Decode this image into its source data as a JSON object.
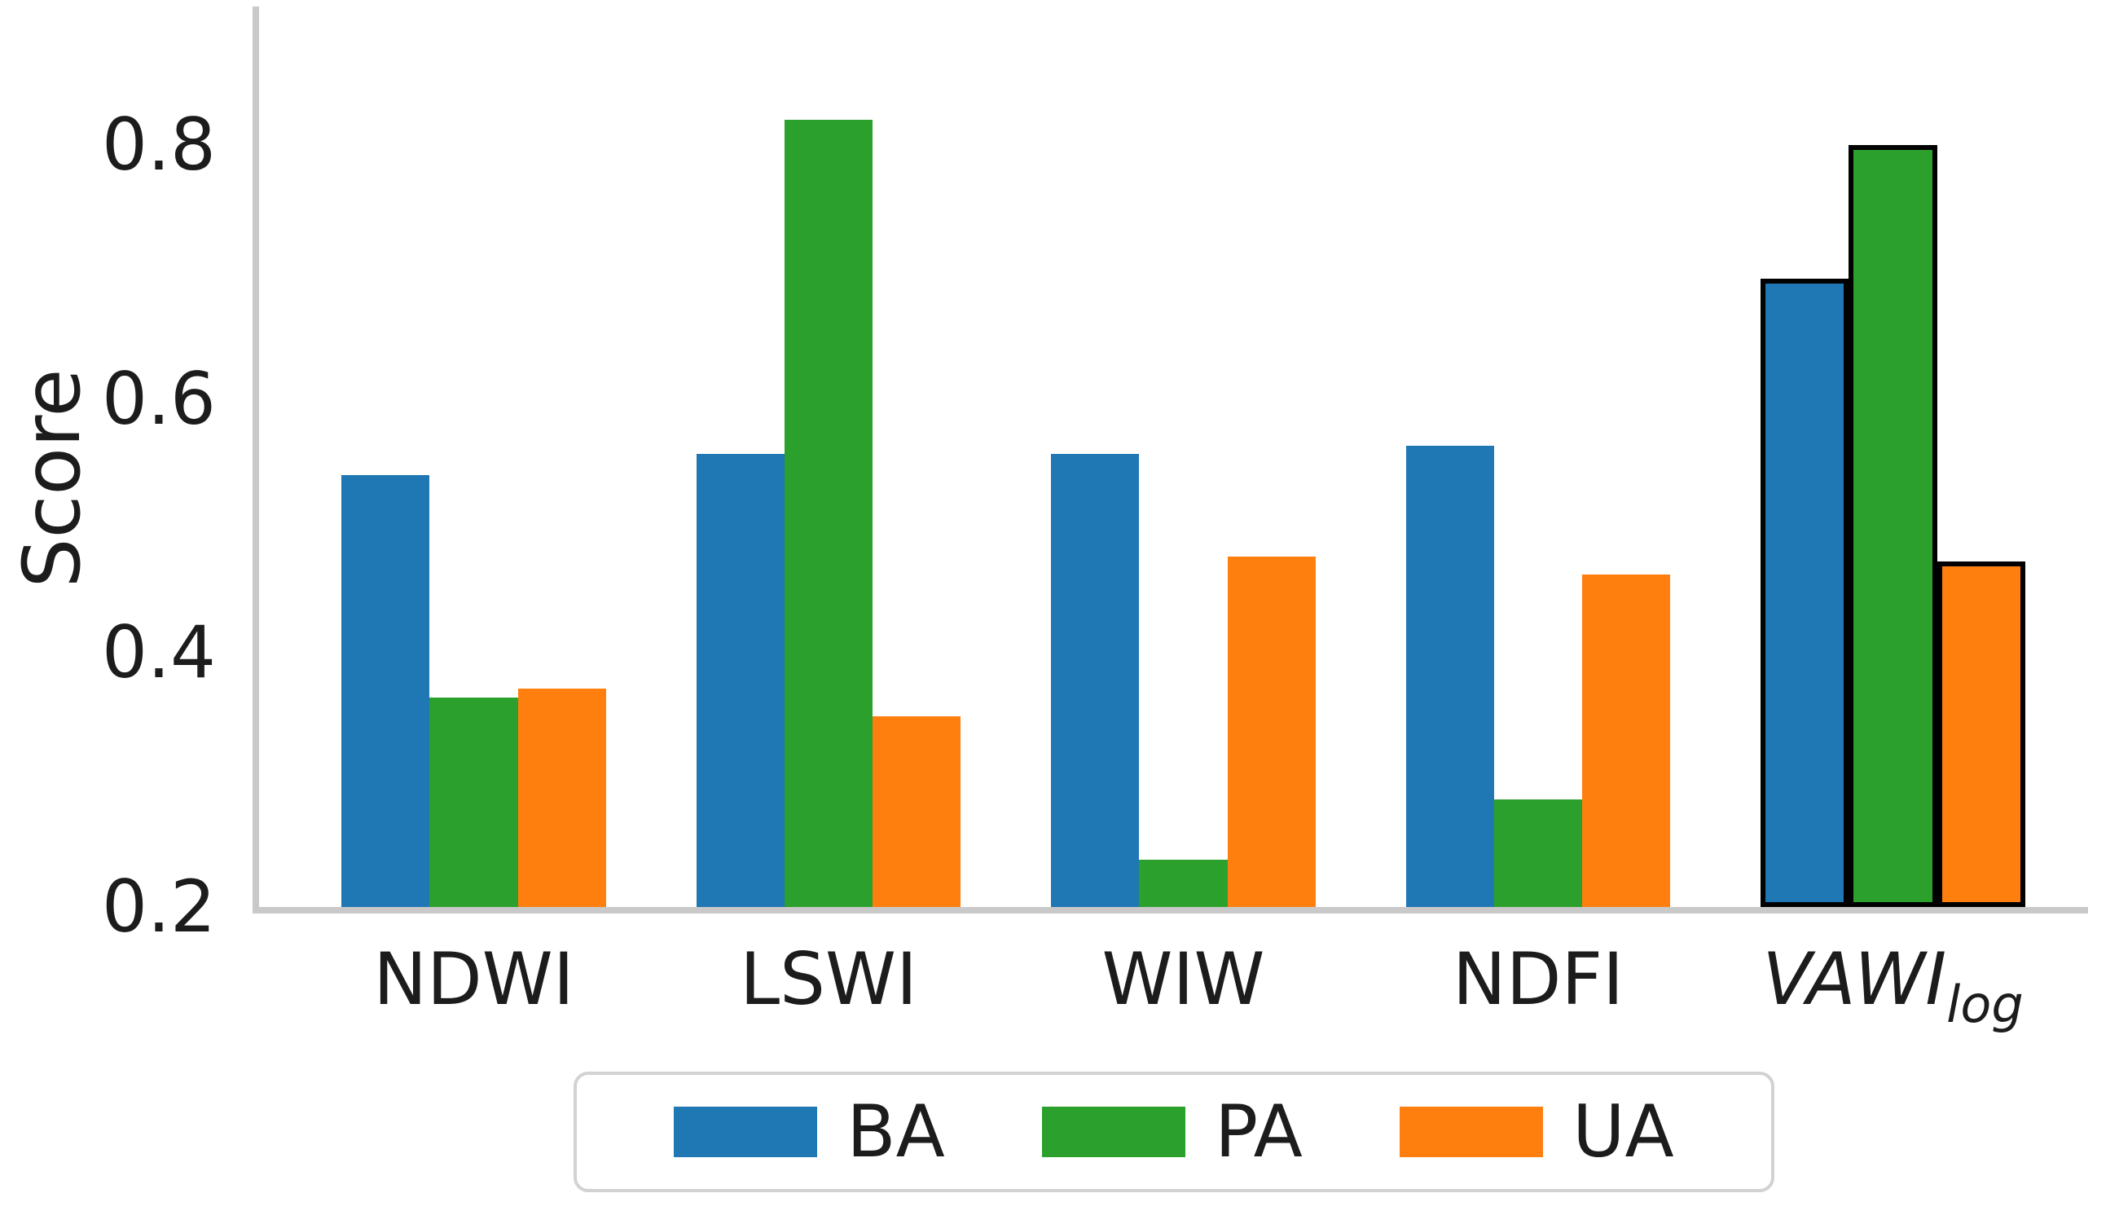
{
  "chart_data": {
    "type": "bar",
    "title": "",
    "xlabel": "",
    "ylabel": "Score",
    "categories": [
      "NDWI",
      "LSWI",
      "WIW",
      "NDFI",
      "VAWI_log"
    ],
    "category_display": [
      {
        "text": "NDWI",
        "italic": false,
        "subscript": ""
      },
      {
        "text": "LSWI",
        "italic": false,
        "subscript": ""
      },
      {
        "text": "WIW",
        "italic": false,
        "subscript": ""
      },
      {
        "text": "NDFI",
        "italic": false,
        "subscript": ""
      },
      {
        "text": "VAWI",
        "italic": true,
        "subscript": "log"
      }
    ],
    "series": [
      {
        "name": "BA",
        "color": "#1f77b4",
        "values": [
          0.54,
          0.557,
          0.557,
          0.563,
          0.695
        ]
      },
      {
        "name": "PA",
        "color": "#2ca02c",
        "values": [
          0.365,
          0.82,
          0.237,
          0.285,
          0.8
        ]
      },
      {
        "name": "UA",
        "color": "#ff7f0e",
        "values": [
          0.372,
          0.35,
          0.476,
          0.462,
          0.472
        ]
      }
    ],
    "ylim": [
      0.2,
      0.909
    ],
    "yticks": [
      0.2,
      0.4,
      0.6,
      0.8
    ],
    "ytick_labels": [
      "0.2",
      "0.4",
      "0.6",
      "0.8"
    ],
    "grid": false,
    "legend_position": "bottom-center",
    "legend_labels": [
      "BA",
      "PA",
      "UA"
    ],
    "highlighted_category": "VAWI_log",
    "highlight_edge_color": "#000000",
    "axis_line_color": "#c9c9c9",
    "text_color": "#1c1c1c",
    "background_color": "#ffffff"
  }
}
